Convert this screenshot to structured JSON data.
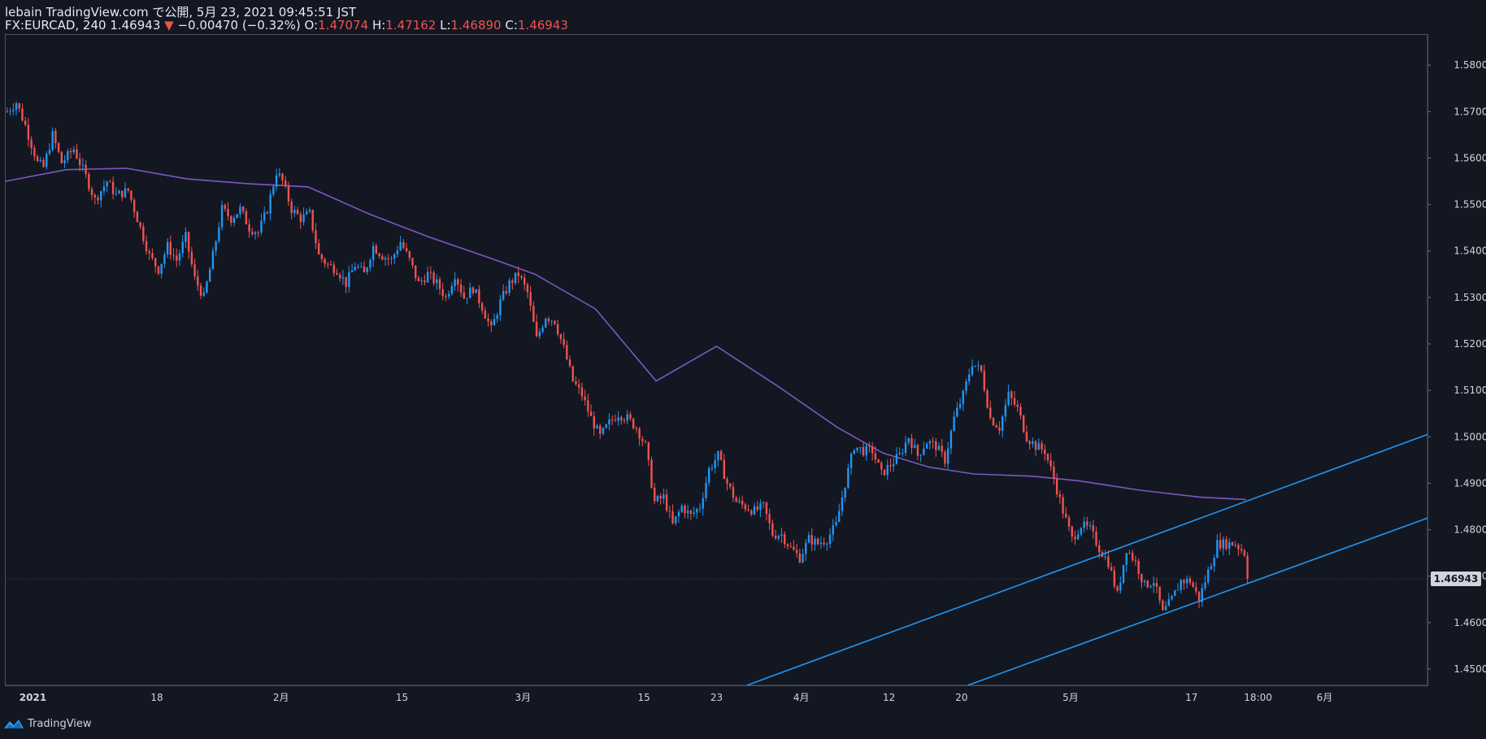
{
  "header": {
    "publish_line": "lebain TradingView.com で公開, 5月 23, 2021 09:45:51 JST",
    "symbol": "FX:EURCAD, 240",
    "last": "1.46943",
    "down_arrow": "▼",
    "change": "−0.00470 (−0.32%)",
    "o_label": "O:",
    "o_value": "1.47074",
    "h_label": "H:",
    "h_value": "1.47162",
    "l_label": "L:",
    "l_value": "1.46890",
    "c_label": "C:",
    "c_value": "1.46943"
  },
  "price_badge": "1.46943",
  "footer": {
    "brand": "TradingView",
    "icon": "tradingview-logo-icon"
  },
  "colors": {
    "background": "#131722",
    "up": "#2196f3",
    "down": "#ef5350",
    "ma": "#7e57c2",
    "trendline": "#2196f3",
    "axis_text": "#d1d4dc"
  },
  "chart_data": {
    "type": "candlestick",
    "symbol": "FX:EURCAD",
    "timeframe": "240",
    "ylim": [
      1.4465,
      1.5865
    ],
    "yticks": [
      "1.58000",
      "1.57000",
      "1.56000",
      "1.55000",
      "1.54000",
      "1.53000",
      "1.52000",
      "1.51000",
      "1.50000",
      "1.49000",
      "1.48000",
      "1.47000",
      "1.46000",
      "1.45000"
    ],
    "y_tick_values": [
      1.58,
      1.57,
      1.56,
      1.55,
      1.54,
      1.53,
      1.52,
      1.51,
      1.5,
      1.49,
      1.48,
      1.47,
      1.46,
      1.45
    ],
    "x_total_bars": 470,
    "xticks": [
      {
        "label": "2021",
        "bar": 9,
        "bold": true
      },
      {
        "label": "18",
        "bar": 50
      },
      {
        "label": "2月",
        "bar": 91
      },
      {
        "label": "15",
        "bar": 131
      },
      {
        "label": "3月",
        "bar": 171
      },
      {
        "label": "15",
        "bar": 211
      },
      {
        "label": "23",
        "bar": 235
      },
      {
        "label": "4月",
        "bar": 263
      },
      {
        "label": "12",
        "bar": 292
      },
      {
        "label": "20",
        "bar": 316
      },
      {
        "label": "5月",
        "bar": 352
      },
      {
        "label": "17",
        "bar": 392
      },
      {
        "label": "18:00",
        "bar": 414
      },
      {
        "label": "6月",
        "bar": 436
      }
    ],
    "close_path": [
      [
        0,
        1.57
      ],
      [
        3,
        1.572
      ],
      [
        6,
        1.567
      ],
      [
        10,
        1.559
      ],
      [
        12,
        1.558
      ],
      [
        15,
        1.565
      ],
      [
        18,
        1.559
      ],
      [
        22,
        1.562
      ],
      [
        26,
        1.556
      ],
      [
        29,
        1.551
      ],
      [
        33,
        1.555
      ],
      [
        36,
        1.552
      ],
      [
        40,
        1.553
      ],
      [
        43,
        1.547
      ],
      [
        47,
        1.539
      ],
      [
        50,
        1.536
      ],
      [
        53,
        1.541
      ],
      [
        56,
        1.538
      ],
      [
        59,
        1.543
      ],
      [
        62,
        1.534
      ],
      [
        65,
        1.53
      ],
      [
        68,
        1.539
      ],
      [
        71,
        1.549
      ],
      [
        74,
        1.547
      ],
      [
        77,
        1.549
      ],
      [
        80,
        1.545
      ],
      [
        83,
        1.544
      ],
      [
        86,
        1.549
      ],
      [
        89,
        1.557
      ],
      [
        91,
        1.555
      ],
      [
        94,
        1.549
      ],
      [
        97,
        1.547
      ],
      [
        100,
        1.548
      ],
      [
        103,
        1.539
      ],
      [
        106,
        1.537
      ],
      [
        109,
        1.536
      ],
      [
        112,
        1.533
      ],
      [
        115,
        1.537
      ],
      [
        118,
        1.535
      ],
      [
        121,
        1.541
      ],
      [
        124,
        1.539
      ],
      [
        127,
        1.538
      ],
      [
        130,
        1.542
      ],
      [
        133,
        1.538
      ],
      [
        136,
        1.533
      ],
      [
        139,
        1.535
      ],
      [
        142,
        1.533
      ],
      [
        145,
        1.53
      ],
      [
        148,
        1.535
      ],
      [
        151,
        1.53
      ],
      [
        154,
        1.532
      ],
      [
        157,
        1.528
      ],
      [
        160,
        1.523
      ],
      [
        163,
        1.529
      ],
      [
        166,
        1.533
      ],
      [
        169,
        1.535
      ],
      [
        172,
        1.531
      ],
      [
        175,
        1.521
      ],
      [
        178,
        1.526
      ],
      [
        181,
        1.525
      ],
      [
        184,
        1.519
      ],
      [
        187,
        1.512
      ],
      [
        190,
        1.509
      ],
      [
        193,
        1.504
      ],
      [
        196,
        1.5
      ],
      [
        199,
        1.503
      ],
      [
        202,
        1.505
      ],
      [
        205,
        1.504
      ],
      [
        208,
        1.502
      ],
      [
        211,
        1.498
      ],
      [
        214,
        1.486
      ],
      [
        217,
        1.487
      ],
      [
        220,
        1.481
      ],
      [
        223,
        1.485
      ],
      [
        226,
        1.483
      ],
      [
        229,
        1.485
      ],
      [
        232,
        1.493
      ],
      [
        235,
        1.496
      ],
      [
        238,
        1.49
      ],
      [
        241,
        1.486
      ],
      [
        244,
        1.485
      ],
      [
        247,
        1.484
      ],
      [
        250,
        1.485
      ],
      [
        253,
        1.479
      ],
      [
        256,
        1.479
      ],
      [
        259,
        1.476
      ],
      [
        262,
        1.474
      ],
      [
        265,
        1.478
      ],
      [
        268,
        1.477
      ],
      [
        271,
        1.478
      ],
      [
        274,
        1.481
      ],
      [
        277,
        1.49
      ],
      [
        280,
        1.498
      ],
      [
        283,
        1.497
      ],
      [
        286,
        1.497
      ],
      [
        289,
        1.492
      ],
      [
        292,
        1.494
      ],
      [
        295,
        1.496
      ],
      [
        298,
        1.5
      ],
      [
        301,
        1.496
      ],
      [
        304,
        1.499
      ],
      [
        307,
        1.498
      ],
      [
        310,
        1.495
      ],
      [
        313,
        1.504
      ],
      [
        316,
        1.509
      ],
      [
        319,
        1.516
      ],
      [
        322,
        1.514
      ],
      [
        325,
        1.504
      ],
      [
        328,
        1.502
      ],
      [
        331,
        1.509
      ],
      [
        334,
        1.506
      ],
      [
        337,
        1.5
      ],
      [
        340,
        1.498
      ],
      [
        343,
        1.497
      ],
      [
        346,
        1.491
      ],
      [
        349,
        1.484
      ],
      [
        352,
        1.478
      ],
      [
        355,
        1.481
      ],
      [
        358,
        1.48
      ],
      [
        361,
        1.476
      ],
      [
        364,
        1.473
      ],
      [
        367,
        1.466
      ],
      [
        370,
        1.476
      ],
      [
        373,
        1.473
      ],
      [
        376,
        1.468
      ],
      [
        379,
        1.469
      ],
      [
        382,
        1.462
      ],
      [
        385,
        1.465
      ],
      [
        388,
        1.469
      ],
      [
        391,
        1.469
      ],
      [
        394,
        1.465
      ],
      [
        397,
        1.471
      ],
      [
        400,
        1.477
      ],
      [
        403,
        1.477
      ],
      [
        406,
        1.477
      ],
      [
        409,
        1.475
      ],
      [
        410,
        1.4695
      ]
    ],
    "ma_path": [
      [
        0,
        1.555
      ],
      [
        20,
        1.5575
      ],
      [
        40,
        1.5578
      ],
      [
        60,
        1.5555
      ],
      [
        80,
        1.5545
      ],
      [
        100,
        1.5538
      ],
      [
        120,
        1.548
      ],
      [
        140,
        1.543
      ],
      [
        160,
        1.5385
      ],
      [
        175,
        1.535
      ],
      [
        195,
        1.5275
      ],
      [
        215,
        1.512
      ],
      [
        235,
        1.5195
      ],
      [
        255,
        1.511
      ],
      [
        275,
        1.502
      ],
      [
        290,
        1.4965
      ],
      [
        305,
        1.4935
      ],
      [
        320,
        1.492
      ],
      [
        340,
        1.4915
      ],
      [
        355,
        1.4905
      ],
      [
        375,
        1.4885
      ],
      [
        395,
        1.487
      ],
      [
        410,
        1.4865
      ]
    ],
    "trendlines": [
      {
        "from": [
          245,
          1.4465
        ],
        "to": [
          470,
          1.5005
        ]
      },
      {
        "from": [
          318,
          1.4465
        ],
        "to": [
          470,
          1.4825
        ]
      }
    ],
    "last_price": 1.46943
  }
}
